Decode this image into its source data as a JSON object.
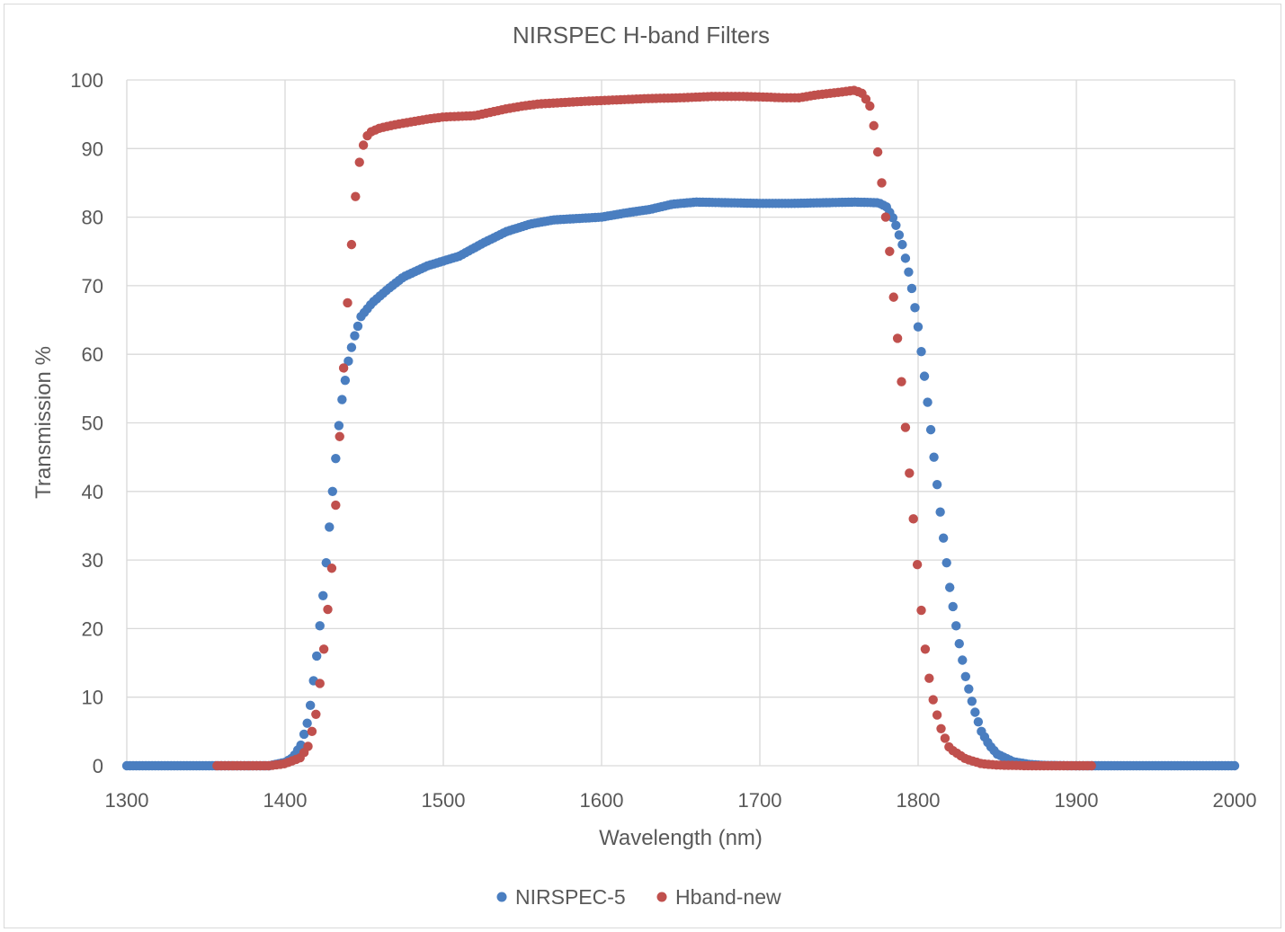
{
  "chart_data": {
    "type": "scatter",
    "title": "NIRSPEC H-band Filters",
    "xlabel": "Wavelength (nm)",
    "ylabel": "Transmission %",
    "xlim": [
      1300,
      2000
    ],
    "ylim": [
      0,
      100
    ],
    "x_ticks": [
      1300,
      1400,
      1500,
      1600,
      1700,
      1800,
      1900,
      2000
    ],
    "y_ticks": [
      0,
      10,
      20,
      30,
      40,
      50,
      60,
      70,
      80,
      90,
      100
    ],
    "grid": true,
    "legend_position": "bottom",
    "series": [
      {
        "name": "NIRSPEC-5",
        "color": "#4a7ec0",
        "x_range": [
          1300,
          2000
        ],
        "x_step": 2,
        "points": [
          [
            1300,
            0
          ],
          [
            1390,
            0
          ],
          [
            1400,
            0.5
          ],
          [
            1405,
            1.2
          ],
          [
            1410,
            3
          ],
          [
            1415,
            7
          ],
          [
            1420,
            16
          ],
          [
            1425,
            27
          ],
          [
            1430,
            40
          ],
          [
            1435,
            52
          ],
          [
            1440,
            59
          ],
          [
            1443,
            62
          ],
          [
            1448,
            65.5
          ],
          [
            1455,
            67.5
          ],
          [
            1465,
            69.5
          ],
          [
            1475,
            71.3
          ],
          [
            1490,
            72.9
          ],
          [
            1500,
            73.6
          ],
          [
            1510,
            74.3
          ],
          [
            1525,
            76.2
          ],
          [
            1540,
            77.9
          ],
          [
            1555,
            79
          ],
          [
            1570,
            79.6
          ],
          [
            1585,
            79.8
          ],
          [
            1600,
            80
          ],
          [
            1615,
            80.6
          ],
          [
            1630,
            81.1
          ],
          [
            1645,
            81.9
          ],
          [
            1660,
            82.2
          ],
          [
            1680,
            82.1
          ],
          [
            1700,
            82
          ],
          [
            1720,
            82
          ],
          [
            1740,
            82.1
          ],
          [
            1760,
            82.2
          ],
          [
            1775,
            82.1
          ],
          [
            1780,
            81.5
          ],
          [
            1785,
            79.5
          ],
          [
            1790,
            76
          ],
          [
            1795,
            71
          ],
          [
            1800,
            64
          ],
          [
            1805,
            55
          ],
          [
            1810,
            45
          ],
          [
            1815,
            35
          ],
          [
            1820,
            26
          ],
          [
            1825,
            19
          ],
          [
            1830,
            13
          ],
          [
            1835,
            8.5
          ],
          [
            1840,
            5
          ],
          [
            1845,
            3
          ],
          [
            1850,
            1.7
          ],
          [
            1860,
            0.6
          ],
          [
            1870,
            0.2
          ],
          [
            1880,
            0.05
          ],
          [
            1900,
            0
          ],
          [
            2000,
            0
          ]
        ]
      },
      {
        "name": "Hband-new",
        "color": "#c0504d",
        "x_range": [
          1357,
          1910
        ],
        "x_step": 2.5,
        "points": [
          [
            1357,
            0
          ],
          [
            1390,
            0
          ],
          [
            1400,
            0.3
          ],
          [
            1410,
            1.2
          ],
          [
            1415,
            3
          ],
          [
            1420,
            8
          ],
          [
            1425,
            18
          ],
          [
            1430,
            30
          ],
          [
            1435,
            50
          ],
          [
            1438,
            62
          ],
          [
            1441,
            73
          ],
          [
            1444,
            82
          ],
          [
            1447,
            88
          ],
          [
            1450,
            91
          ],
          [
            1453,
            92.3
          ],
          [
            1460,
            93
          ],
          [
            1470,
            93.5
          ],
          [
            1480,
            93.9
          ],
          [
            1490,
            94.3
          ],
          [
            1500,
            94.6
          ],
          [
            1510,
            94.7
          ],
          [
            1520,
            94.8
          ],
          [
            1530,
            95.3
          ],
          [
            1540,
            95.8
          ],
          [
            1550,
            96.2
          ],
          [
            1560,
            96.5
          ],
          [
            1575,
            96.7
          ],
          [
            1590,
            96.9
          ],
          [
            1610,
            97.1
          ],
          [
            1630,
            97.3
          ],
          [
            1650,
            97.4
          ],
          [
            1670,
            97.6
          ],
          [
            1690,
            97.6
          ],
          [
            1705,
            97.5
          ],
          [
            1715,
            97.4
          ],
          [
            1725,
            97.4
          ],
          [
            1735,
            97.8
          ],
          [
            1750,
            98.2
          ],
          [
            1760,
            98.5
          ],
          [
            1765,
            98
          ],
          [
            1770,
            96
          ],
          [
            1773,
            92
          ],
          [
            1776,
            87
          ],
          [
            1779,
            81
          ],
          [
            1782,
            75
          ],
          [
            1785,
            67
          ],
          [
            1788,
            60
          ],
          [
            1791,
            52
          ],
          [
            1794,
            44
          ],
          [
            1797,
            36
          ],
          [
            1800,
            28
          ],
          [
            1803,
            20
          ],
          [
            1806,
            14
          ],
          [
            1810,
            9
          ],
          [
            1815,
            5
          ],
          [
            1820,
            2.5
          ],
          [
            1830,
            1
          ],
          [
            1840,
            0.3
          ],
          [
            1850,
            0.1
          ],
          [
            1870,
            0
          ],
          [
            1910,
            0
          ]
        ]
      }
    ]
  }
}
